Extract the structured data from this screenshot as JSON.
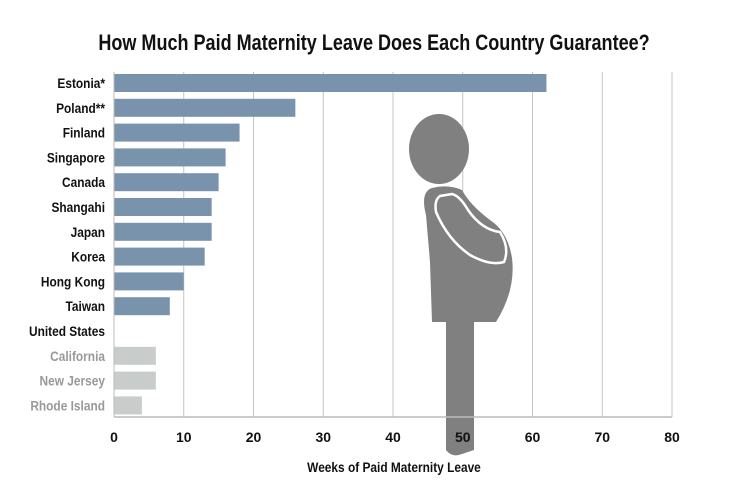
{
  "chart_data": {
    "type": "bar",
    "orientation": "horizontal",
    "title": "How Much Paid Maternity Leave Does Each Country Guarantee?",
    "xlabel": "Weeks of Paid Maternity Leave",
    "ylabel": "",
    "xlim": [
      0,
      80
    ],
    "xticks": [
      0,
      10,
      20,
      30,
      40,
      50,
      60,
      70,
      80
    ],
    "grid": true,
    "categories": [
      "Estonia*",
      "Poland**",
      "Finland",
      "Singapore",
      "Canada",
      "Shangahi",
      "Japan",
      "Korea",
      "Hong Kong",
      "Taiwan",
      "United States",
      "California",
      "New Jersey",
      "Rhode Island"
    ],
    "values": [
      62,
      26,
      18,
      16,
      15,
      14,
      14,
      13,
      10,
      8,
      0,
      6,
      6,
      4
    ],
    "groups": [
      "country",
      "country",
      "country",
      "country",
      "country",
      "country",
      "country",
      "country",
      "country",
      "country",
      "country",
      "state",
      "state",
      "state"
    ],
    "colors": {
      "country": "#7a93ad",
      "state": "#c8cdcb",
      "country_label": "#111111",
      "state_label": "#999999",
      "figure": "#808080"
    }
  }
}
